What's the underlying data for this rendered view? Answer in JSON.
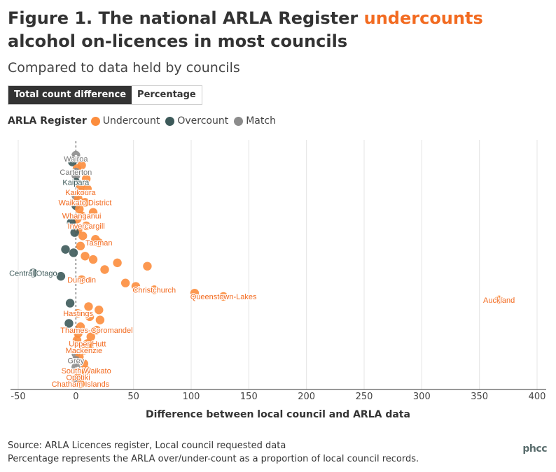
{
  "title": {
    "part1": "Figure 1. The national ARLA Register ",
    "highlight": "undercounts",
    "part2": " alcohol on-licences in most councils",
    "highlight_color": "#f26b21"
  },
  "subtitle": "Compared to data held by councils",
  "toggle": {
    "active": "Total count difference",
    "inactive": "Percentage"
  },
  "legend": {
    "title": "ARLA Register",
    "items": [
      {
        "label": "Undercount",
        "color": "#fc8d3d"
      },
      {
        "label": "Overcount",
        "color": "#3d5a5a"
      },
      {
        "label": "Match",
        "color": "#8c8c8c"
      }
    ]
  },
  "source_lines": [
    "Source: ARLA Licences register, Local council requested data",
    "Percentage represents the ARLA over/under-count as a proportion of local council records."
  ],
  "logo": "phcc",
  "chart_data": {
    "type": "scatter",
    "title": "",
    "xlabel": "Difference between local council and ARLA data",
    "ylabel": "",
    "xlim": [
      -50,
      400
    ],
    "xticks": [
      -50,
      0,
      50,
      100,
      150,
      200,
      250,
      300,
      350,
      400
    ],
    "grid": true,
    "series": [
      {
        "name": "Undercount",
        "color": "#fc8d3d"
      },
      {
        "name": "Overcount",
        "color": "#3d5a5a"
      },
      {
        "name": "Match",
        "color": "#8c8c8c"
      }
    ],
    "points": [
      {
        "x": 0,
        "category": "Match"
      },
      {
        "x": 0,
        "category": "Match",
        "label": "Wairoa"
      },
      {
        "x": -3,
        "category": "Overcount"
      },
      {
        "x": 5,
        "category": "Undercount"
      },
      {
        "x": 1,
        "category": "Undercount"
      },
      {
        "x": 0,
        "category": "Match",
        "label": "Carterton"
      },
      {
        "x": 0,
        "category": "Match"
      },
      {
        "x": 9,
        "category": "Undercount"
      },
      {
        "x": 0,
        "category": "Overcount",
        "label": "Kaipara"
      },
      {
        "x": 4,
        "category": "Undercount"
      },
      {
        "x": 10,
        "category": "Undercount"
      },
      {
        "x": 4,
        "category": "Undercount",
        "label": "Kaikoura"
      },
      {
        "x": 0,
        "category": "Match"
      },
      {
        "x": 2,
        "category": "Undercount"
      },
      {
        "x": 8,
        "category": "Undercount",
        "label": "Waikato District"
      },
      {
        "x": 0,
        "category": "Overcount"
      },
      {
        "x": 3,
        "category": "Undercount"
      },
      {
        "x": 15,
        "category": "Undercount"
      },
      {
        "x": 5,
        "category": "Undercount",
        "label": "Whanganui"
      },
      {
        "x": 1,
        "category": "Undercount"
      },
      {
        "x": -4,
        "category": "Overcount"
      },
      {
        "x": 9,
        "category": "Undercount",
        "label": "Invercargill"
      },
      {
        "x": 2,
        "category": "Undercount"
      },
      {
        "x": -1,
        "category": "Overcount"
      },
      {
        "x": 6,
        "category": "Undercount"
      },
      {
        "x": 17,
        "category": "Undercount"
      },
      {
        "x": 20,
        "category": "Undercount",
        "label": "Tasman"
      },
      {
        "x": 4,
        "category": "Undercount"
      },
      {
        "x": -9,
        "category": "Overcount"
      },
      {
        "x": -2,
        "category": "Overcount"
      },
      {
        "x": 8,
        "category": "Undercount"
      },
      {
        "x": 15,
        "category": "Undercount"
      },
      {
        "x": 36,
        "category": "Undercount"
      },
      {
        "x": 62,
        "category": "Undercount"
      },
      {
        "x": 25,
        "category": "Undercount"
      },
      {
        "x": -37,
        "category": "Overcount",
        "label": "Central Otago"
      },
      {
        "x": -13,
        "category": "Overcount"
      },
      {
        "x": 5,
        "category": "Undercount",
        "label": "Dunedin"
      },
      {
        "x": 43,
        "category": "Undercount"
      },
      {
        "x": 52,
        "category": "Undercount"
      },
      {
        "x": 68,
        "category": "Undercount",
        "label": "Christchurch"
      },
      {
        "x": 103,
        "category": "Undercount"
      },
      {
        "x": 128,
        "category": "Undercount",
        "label": "Queenstown-Lakes"
      },
      {
        "x": 367,
        "category": "Undercount",
        "label": "Auckland"
      },
      {
        "x": -5,
        "category": "Overcount"
      },
      {
        "x": 11,
        "category": "Undercount"
      },
      {
        "x": 20,
        "category": "Undercount"
      },
      {
        "x": 2,
        "category": "Undercount",
        "label": "Hastings"
      },
      {
        "x": 12,
        "category": "Undercount"
      },
      {
        "x": 21,
        "category": "Undercount"
      },
      {
        "x": -6,
        "category": "Overcount"
      },
      {
        "x": 4,
        "category": "Undercount"
      },
      {
        "x": 18,
        "category": "Undercount",
        "label": "Thames-Coromandel"
      },
      {
        "x": 2,
        "category": "Undercount"
      },
      {
        "x": 13,
        "category": "Undercount"
      },
      {
        "x": 1,
        "category": "Undercount"
      },
      {
        "x": 10,
        "category": "Undercount",
        "label": "Upper Hutt"
      },
      {
        "x": 12,
        "category": "Undercount"
      },
      {
        "x": 7,
        "category": "Undercount",
        "label": "Mackenzie"
      },
      {
        "x": 0,
        "category": "Match"
      },
      {
        "x": 3,
        "category": "Undercount"
      },
      {
        "x": 0,
        "category": "Match",
        "label": "Grey"
      },
      {
        "x": 7,
        "category": "Undercount"
      },
      {
        "x": 0,
        "category": "Match"
      },
      {
        "x": 9,
        "category": "Undercount",
        "label": "South Waikato"
      },
      {
        "x": 3,
        "category": "Undercount"
      },
      {
        "x": 2,
        "category": "Undercount",
        "label": "Opotiki"
      },
      {
        "x": 0,
        "category": "Match"
      },
      {
        "x": 4,
        "category": "Undercount",
        "label": "Chatham Islands"
      }
    ]
  }
}
